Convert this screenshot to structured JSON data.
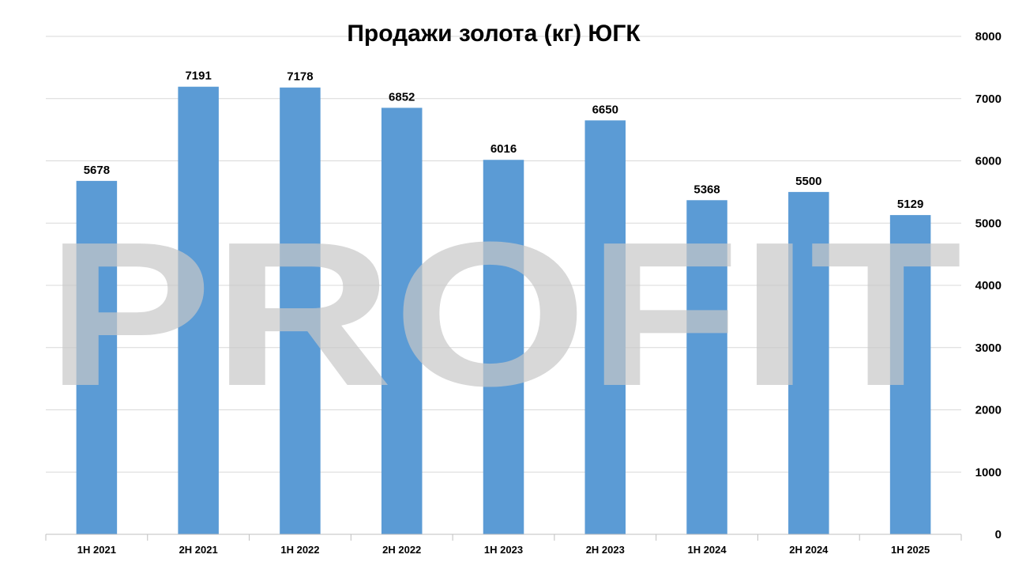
{
  "watermark": "PROFIT",
  "colors": {
    "bar": "#5b9bd5",
    "grid": "#d9d9d9",
    "axis": "#bfbfbf",
    "watermark": "#c8c8c8"
  },
  "chart_data": {
    "type": "bar",
    "title": "Продажи золота (кг) ЮГК",
    "categories": [
      "1H 2021",
      "2H 2021",
      "1H 2022",
      "2H 2022",
      "1H 2023",
      "2H 2023",
      "1H 2024",
      "2H 2024",
      "1H 2025"
    ],
    "values": [
      5678,
      7191,
      7178,
      6852,
      6016,
      6650,
      5368,
      5500,
      5129
    ],
    "xlabel": "",
    "ylabel": "",
    "ylim": [
      0,
      8000
    ],
    "yticks": [
      0,
      1000,
      2000,
      3000,
      4000,
      5000,
      6000,
      7000,
      8000
    ],
    "y_axis_side": "right",
    "grid": true,
    "legend": "none",
    "data_labels": true
  }
}
